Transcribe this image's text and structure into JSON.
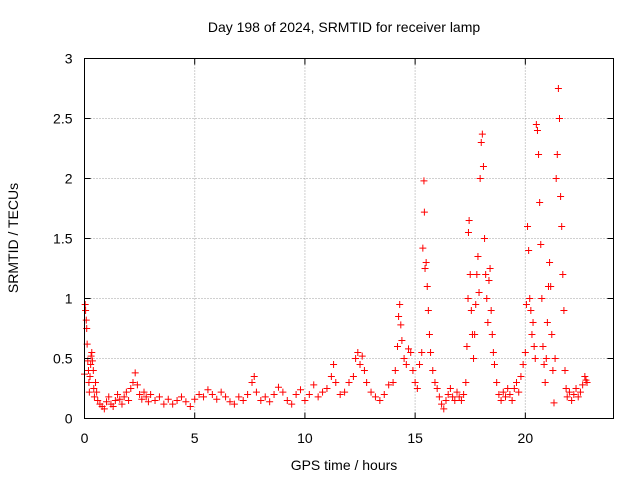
{
  "chart_data": {
    "type": "scatter",
    "title": "Day 198 of 2024, SRMTID for receiver lamp",
    "xlabel": "GPS time / hours",
    "ylabel": "SRMTID / TECUs",
    "xlim": [
      0,
      24
    ],
    "ylim": [
      0,
      3
    ],
    "xticks": [
      0,
      5,
      10,
      15,
      20
    ],
    "xtick_labels": [
      "0",
      "5",
      "10",
      "15",
      "20"
    ],
    "yticks": [
      0,
      0.5,
      1,
      1.5,
      2,
      2.5,
      3
    ],
    "ytick_labels": [
      "0",
      "0.5",
      "1",
      "1.5",
      "2",
      "2.5",
      "3"
    ],
    "grid": true,
    "marker": "plus",
    "color": "#ff0000",
    "series": [
      {
        "name": "SRMTID",
        "points": [
          [
            0.0,
            0.37
          ],
          [
            0.03,
            0.95
          ],
          [
            0.05,
            0.9
          ],
          [
            0.08,
            0.82
          ],
          [
            0.1,
            0.75
          ],
          [
            0.12,
            0.62
          ],
          [
            0.15,
            0.48
          ],
          [
            0.18,
            0.4
          ],
          [
            0.2,
            0.3
          ],
          [
            0.22,
            0.22
          ],
          [
            0.25,
            0.35
          ],
          [
            0.28,
            0.45
          ],
          [
            0.3,
            0.52
          ],
          [
            0.33,
            0.55
          ],
          [
            0.36,
            0.48
          ],
          [
            0.4,
            0.4
          ],
          [
            0.42,
            0.25
          ],
          [
            0.45,
            0.18
          ],
          [
            0.5,
            0.3
          ],
          [
            0.55,
            0.22
          ],
          [
            0.6,
            0.15
          ],
          [
            0.7,
            0.12
          ],
          [
            0.8,
            0.1
          ],
          [
            0.9,
            0.08
          ],
          [
            1.0,
            0.14
          ],
          [
            1.1,
            0.18
          ],
          [
            1.2,
            0.12
          ],
          [
            1.3,
            0.1
          ],
          [
            1.4,
            0.15
          ],
          [
            1.5,
            0.2
          ],
          [
            1.6,
            0.16
          ],
          [
            1.7,
            0.12
          ],
          [
            1.8,
            0.18
          ],
          [
            1.9,
            0.22
          ],
          [
            2.0,
            0.15
          ],
          [
            2.1,
            0.25
          ],
          [
            2.2,
            0.3
          ],
          [
            2.3,
            0.38
          ],
          [
            2.4,
            0.28
          ],
          [
            2.5,
            0.2
          ],
          [
            2.6,
            0.16
          ],
          [
            2.7,
            0.22
          ],
          [
            2.8,
            0.18
          ],
          [
            2.9,
            0.14
          ],
          [
            3.0,
            0.2
          ],
          [
            3.2,
            0.15
          ],
          [
            3.4,
            0.18
          ],
          [
            3.6,
            0.12
          ],
          [
            3.8,
            0.16
          ],
          [
            4.0,
            0.12
          ],
          [
            4.2,
            0.15
          ],
          [
            4.4,
            0.18
          ],
          [
            4.6,
            0.14
          ],
          [
            4.8,
            0.1
          ],
          [
            5.0,
            0.16
          ],
          [
            5.2,
            0.2
          ],
          [
            5.4,
            0.18
          ],
          [
            5.6,
            0.24
          ],
          [
            5.8,
            0.2
          ],
          [
            6.0,
            0.16
          ],
          [
            6.2,
            0.22
          ],
          [
            6.4,
            0.18
          ],
          [
            6.6,
            0.14
          ],
          [
            6.8,
            0.12
          ],
          [
            7.0,
            0.18
          ],
          [
            7.2,
            0.15
          ],
          [
            7.4,
            0.2
          ],
          [
            7.6,
            0.3
          ],
          [
            7.7,
            0.35
          ],
          [
            7.8,
            0.22
          ],
          [
            8.0,
            0.15
          ],
          [
            8.2,
            0.18
          ],
          [
            8.4,
            0.14
          ],
          [
            8.6,
            0.2
          ],
          [
            8.8,
            0.26
          ],
          [
            9.0,
            0.22
          ],
          [
            9.2,
            0.15
          ],
          [
            9.4,
            0.12
          ],
          [
            9.6,
            0.2
          ],
          [
            9.8,
            0.24
          ],
          [
            10.0,
            0.15
          ],
          [
            10.2,
            0.2
          ],
          [
            10.4,
            0.28
          ],
          [
            10.6,
            0.18
          ],
          [
            10.8,
            0.22
          ],
          [
            11.0,
            0.25
          ],
          [
            11.2,
            0.35
          ],
          [
            11.3,
            0.45
          ],
          [
            11.4,
            0.3
          ],
          [
            11.6,
            0.2
          ],
          [
            11.8,
            0.22
          ],
          [
            12.0,
            0.3
          ],
          [
            12.2,
            0.35
          ],
          [
            12.3,
            0.5
          ],
          [
            12.4,
            0.55
          ],
          [
            12.5,
            0.45
          ],
          [
            12.6,
            0.52
          ],
          [
            12.7,
            0.4
          ],
          [
            12.8,
            0.3
          ],
          [
            13.0,
            0.22
          ],
          [
            13.2,
            0.18
          ],
          [
            13.4,
            0.15
          ],
          [
            13.6,
            0.2
          ],
          [
            13.8,
            0.28
          ],
          [
            14.0,
            0.3
          ],
          [
            14.1,
            0.4
          ],
          [
            14.2,
            0.6
          ],
          [
            14.25,
            0.85
          ],
          [
            14.3,
            0.95
          ],
          [
            14.35,
            0.78
          ],
          [
            14.4,
            0.65
          ],
          [
            14.5,
            0.5
          ],
          [
            14.6,
            0.45
          ],
          [
            14.7,
            0.58
          ],
          [
            14.8,
            0.55
          ],
          [
            14.9,
            0.4
          ],
          [
            15.0,
            0.3
          ],
          [
            15.1,
            0.25
          ],
          [
            15.2,
            0.45
          ],
          [
            15.3,
            0.55
          ],
          [
            15.35,
            1.42
          ],
          [
            15.4,
            1.98
          ],
          [
            15.42,
            1.72
          ],
          [
            15.45,
            1.25
          ],
          [
            15.5,
            1.3
          ],
          [
            15.55,
            1.1
          ],
          [
            15.6,
            0.9
          ],
          [
            15.65,
            0.7
          ],
          [
            15.7,
            0.55
          ],
          [
            15.8,
            0.4
          ],
          [
            15.9,
            0.3
          ],
          [
            16.0,
            0.25
          ],
          [
            16.1,
            0.18
          ],
          [
            16.2,
            0.12
          ],
          [
            16.3,
            0.08
          ],
          [
            16.4,
            0.15
          ],
          [
            16.5,
            0.2
          ],
          [
            16.6,
            0.25
          ],
          [
            16.7,
            0.18
          ],
          [
            16.8,
            0.15
          ],
          [
            16.9,
            0.22
          ],
          [
            17.0,
            0.18
          ],
          [
            17.1,
            0.15
          ],
          [
            17.2,
            0.2
          ],
          [
            17.3,
            0.3
          ],
          [
            17.35,
            0.6
          ],
          [
            17.4,
            1.0
          ],
          [
            17.42,
            1.55
          ],
          [
            17.45,
            1.65
          ],
          [
            17.5,
            1.2
          ],
          [
            17.55,
            0.9
          ],
          [
            17.6,
            0.7
          ],
          [
            17.65,
            0.5
          ],
          [
            17.7,
            0.7
          ],
          [
            17.75,
            0.95
          ],
          [
            17.8,
            1.2
          ],
          [
            17.85,
            1.35
          ],
          [
            17.9,
            1.05
          ],
          [
            17.95,
            2.0
          ],
          [
            18.0,
            2.3
          ],
          [
            18.05,
            2.37
          ],
          [
            18.1,
            2.1
          ],
          [
            18.15,
            1.5
          ],
          [
            18.2,
            1.2
          ],
          [
            18.25,
            1.0
          ],
          [
            18.3,
            0.8
          ],
          [
            18.35,
            1.15
          ],
          [
            18.4,
            1.25
          ],
          [
            18.45,
            0.9
          ],
          [
            18.5,
            0.7
          ],
          [
            18.55,
            0.55
          ],
          [
            18.6,
            0.45
          ],
          [
            18.7,
            0.3
          ],
          [
            18.8,
            0.2
          ],
          [
            18.9,
            0.15
          ],
          [
            19.0,
            0.22
          ],
          [
            19.1,
            0.18
          ],
          [
            19.2,
            0.25
          ],
          [
            19.3,
            0.2
          ],
          [
            19.4,
            0.15
          ],
          [
            19.5,
            0.25
          ],
          [
            19.6,
            0.3
          ],
          [
            19.7,
            0.22
          ],
          [
            19.8,
            0.35
          ],
          [
            19.9,
            0.45
          ],
          [
            20.0,
            0.55
          ],
          [
            20.05,
            0.95
          ],
          [
            20.1,
            1.6
          ],
          [
            20.15,
            1.4
          ],
          [
            20.2,
            1.0
          ],
          [
            20.25,
            0.9
          ],
          [
            20.3,
            0.7
          ],
          [
            20.35,
            0.8
          ],
          [
            20.4,
            0.6
          ],
          [
            20.45,
            0.5
          ],
          [
            20.5,
            2.45
          ],
          [
            20.55,
            2.4
          ],
          [
            20.6,
            2.2
          ],
          [
            20.65,
            1.8
          ],
          [
            20.7,
            1.45
          ],
          [
            20.75,
            1.0
          ],
          [
            20.8,
            0.6
          ],
          [
            20.85,
            0.45
          ],
          [
            20.9,
            0.3
          ],
          [
            20.95,
            0.5
          ],
          [
            21.0,
            0.8
          ],
          [
            21.05,
            1.1
          ],
          [
            21.1,
            1.3
          ],
          [
            21.15,
            1.1
          ],
          [
            21.2,
            0.7
          ],
          [
            21.25,
            0.4
          ],
          [
            21.3,
            0.13
          ],
          [
            21.35,
            0.5
          ],
          [
            21.4,
            2.0
          ],
          [
            21.45,
            2.2
          ],
          [
            21.5,
            2.75
          ],
          [
            21.55,
            2.5
          ],
          [
            21.6,
            1.85
          ],
          [
            21.65,
            1.6
          ],
          [
            21.7,
            1.2
          ],
          [
            21.75,
            0.9
          ],
          [
            21.8,
            0.4
          ],
          [
            21.85,
            0.25
          ],
          [
            21.9,
            0.18
          ],
          [
            22.0,
            0.22
          ],
          [
            22.1,
            0.15
          ],
          [
            22.2,
            0.2
          ],
          [
            22.3,
            0.25
          ],
          [
            22.4,
            0.18
          ],
          [
            22.5,
            0.22
          ],
          [
            22.6,
            0.28
          ],
          [
            22.7,
            0.35
          ],
          [
            22.75,
            0.32
          ],
          [
            22.8,
            0.3
          ]
        ]
      }
    ]
  }
}
